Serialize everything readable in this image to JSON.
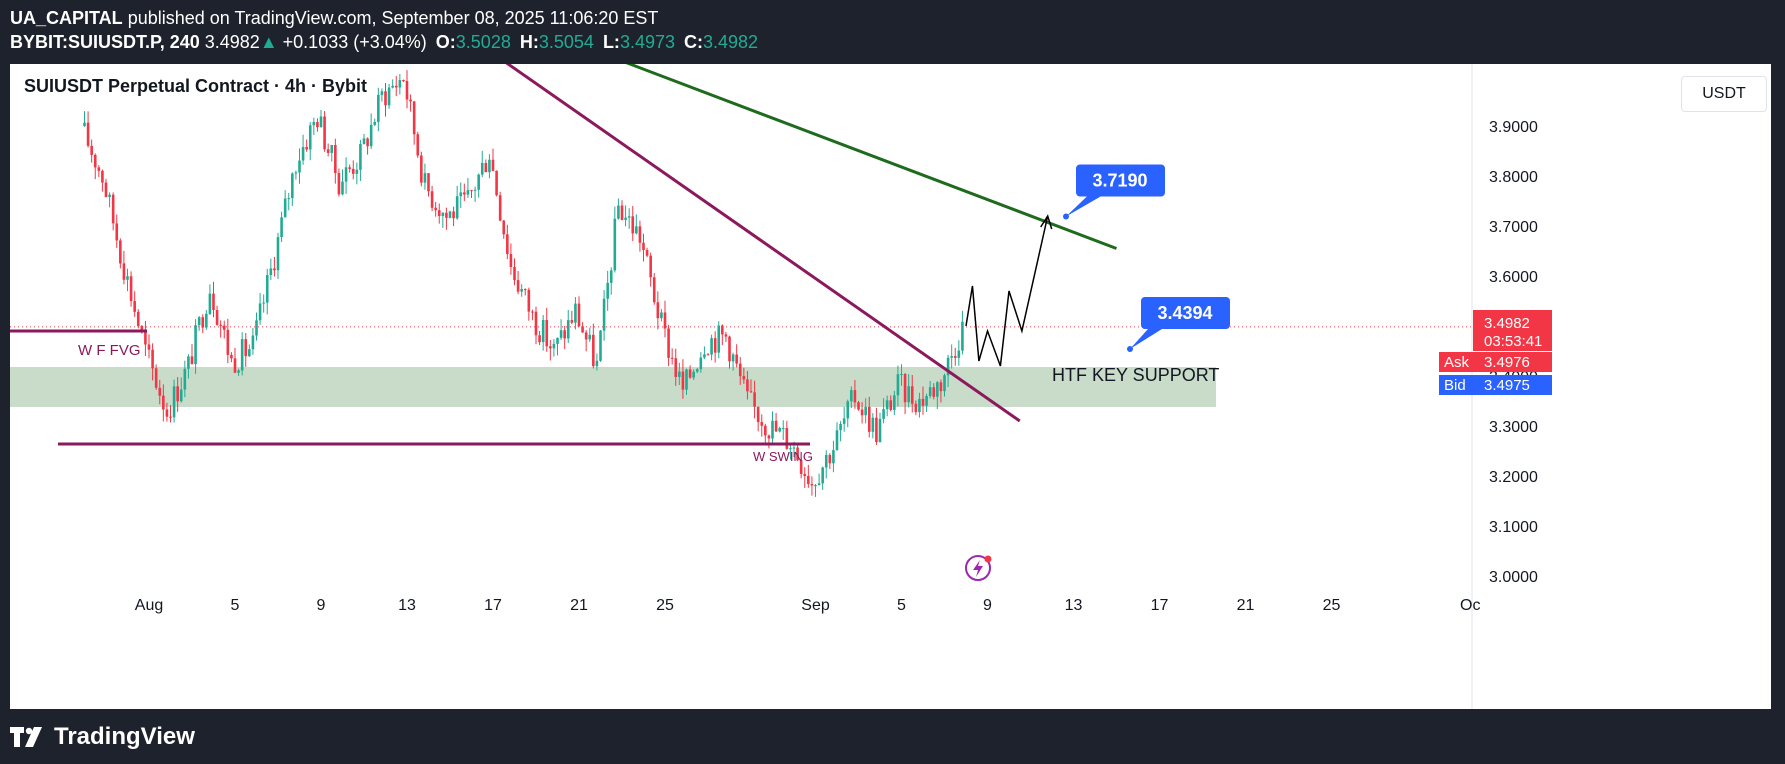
{
  "header": {
    "author": "UA_CAPITAL",
    "published_text": "published on TradingView.com, September 08, 2025 11:06:20 EST",
    "symbol": "BYBIT:SUIUSDT.P, 240",
    "price": "3.4982",
    "up_arrow": "▲",
    "change": "+0.1033 (+3.04%)",
    "o_label": "O:",
    "o_val": "3.5028",
    "h_label": "H:",
    "h_val": "3.5054",
    "l_label": "L:",
    "l_val": "3.4973",
    "c_label": "C:",
    "c_val": "3.4982"
  },
  "legend": "SUIUSDT Perpetual Contract · 4h · Bybit",
  "currency": "USDT",
  "footer": {
    "brand": "TradingView",
    "logo_icon": "tradingview-logo-icon"
  },
  "colors": {
    "up": "#22ab94",
    "down": "#f23645",
    "support_zone": "#c8dcc9",
    "downtrend": "#8b1a5c",
    "resistance": "#1e6b1e",
    "callout": "#2962ff"
  },
  "chart_data": {
    "type": "candlestick",
    "instrument": "SUIUSDT",
    "timeframe": "4h",
    "ylim": [
      2.92,
      4.03
    ],
    "y_ticks": [
      "3.9000",
      "3.8000",
      "3.7000",
      "3.6000",
      "3.5000",
      "3.4000",
      "3.3000",
      "3.2000",
      "3.1000",
      "3.0000"
    ],
    "x_ticks": [
      "Aug",
      "5",
      "9",
      "13",
      "17",
      "21",
      "25",
      "Sep",
      "5",
      "9",
      "13",
      "17",
      "21",
      "25",
      "Oc"
    ],
    "price_path_daily": [
      {
        "date": "Jul 29",
        "close": 3.9
      },
      {
        "date": "Jul 30",
        "close": 3.8
      },
      {
        "date": "Jul 31",
        "close": 3.62
      },
      {
        "date": "Aug 1",
        "close": 3.45
      },
      {
        "date": "Aug 2",
        "close": 3.33
      },
      {
        "date": "Aug 3",
        "close": 3.42
      },
      {
        "date": "Aug 4",
        "close": 3.58
      },
      {
        "date": "Aug 5",
        "close": 3.43
      },
      {
        "date": "Aug 6",
        "close": 3.46
      },
      {
        "date": "Aug 7",
        "close": 3.64
      },
      {
        "date": "Aug 8",
        "close": 3.83
      },
      {
        "date": "Aug 9",
        "close": 3.92
      },
      {
        "date": "Aug 10",
        "close": 3.79
      },
      {
        "date": "Aug 11",
        "close": 3.84
      },
      {
        "date": "Aug 12",
        "close": 3.96
      },
      {
        "date": "Aug 13",
        "close": 4.0
      },
      {
        "date": "Aug 14",
        "close": 3.78
      },
      {
        "date": "Aug 15",
        "close": 3.72
      },
      {
        "date": "Aug 16",
        "close": 3.75
      },
      {
        "date": "Aug 17",
        "close": 3.85
      },
      {
        "date": "Aug 18",
        "close": 3.62
      },
      {
        "date": "Aug 19",
        "close": 3.52
      },
      {
        "date": "Aug 20",
        "close": 3.45
      },
      {
        "date": "Aug 21",
        "close": 3.53
      },
      {
        "date": "Aug 22",
        "close": 3.42
      },
      {
        "date": "Aug 23",
        "close": 3.74
      },
      {
        "date": "Aug 24",
        "close": 3.68
      },
      {
        "date": "Aug 25",
        "close": 3.5
      },
      {
        "date": "Aug 26",
        "close": 3.37
      },
      {
        "date": "Aug 27",
        "close": 3.47
      },
      {
        "date": "Aug 28",
        "close": 3.48
      },
      {
        "date": "Aug 29",
        "close": 3.35
      },
      {
        "date": "Aug 30",
        "close": 3.3
      },
      {
        "date": "Aug 31",
        "close": 3.27
      },
      {
        "date": "Sep 1",
        "close": 3.19
      },
      {
        "date": "Sep 2",
        "close": 3.26
      },
      {
        "date": "Sep 3",
        "close": 3.36
      },
      {
        "date": "Sep 4",
        "close": 3.29
      },
      {
        "date": "Sep 5",
        "close": 3.38
      },
      {
        "date": "Sep 6",
        "close": 3.35
      },
      {
        "date": "Sep 7",
        "close": 3.39
      },
      {
        "date": "Sep 8",
        "close": 3.4982
      }
    ],
    "annotations": {
      "target_label": "3.7190",
      "support_label": "3.4394",
      "zone_label": "HTF KEY SUPPORT",
      "zone_range": [
        3.35,
        3.43
      ],
      "wffvg_label": "W F FVG",
      "wffvg_level": 3.49,
      "wswing_label": "W SWING",
      "wswing_level": 3.264,
      "projection_path": [
        {
          "date": "Sep 8",
          "price": 3.5
        },
        {
          "date": "Sep 8.3",
          "price": 3.58
        },
        {
          "date": "Sep 8.6",
          "price": 3.43
        },
        {
          "date": "Sep 9",
          "price": 3.49
        },
        {
          "date": "Sep 9.6",
          "price": 3.42
        },
        {
          "date": "Sep 10",
          "price": 3.57
        },
        {
          "date": "Sep 10.6",
          "price": 3.49
        },
        {
          "date": "Sep 11.8",
          "price": 3.72
        }
      ],
      "downtrend_line": [
        {
          "date": "Aug 17.5",
          "price": 4.03
        },
        {
          "date": "Sep 10.5",
          "price": 3.31
        }
      ],
      "resistance_line": [
        {
          "date": "Aug 23",
          "price": 4.03
        },
        {
          "date": "Sep 15",
          "price": 3.655
        }
      ]
    },
    "last_price": {
      "value": "3.4982",
      "countdown": "03:53:41",
      "ask_label": "Ask",
      "ask": "3.4976",
      "bid_label": "Bid",
      "bid": "3.4975"
    }
  }
}
